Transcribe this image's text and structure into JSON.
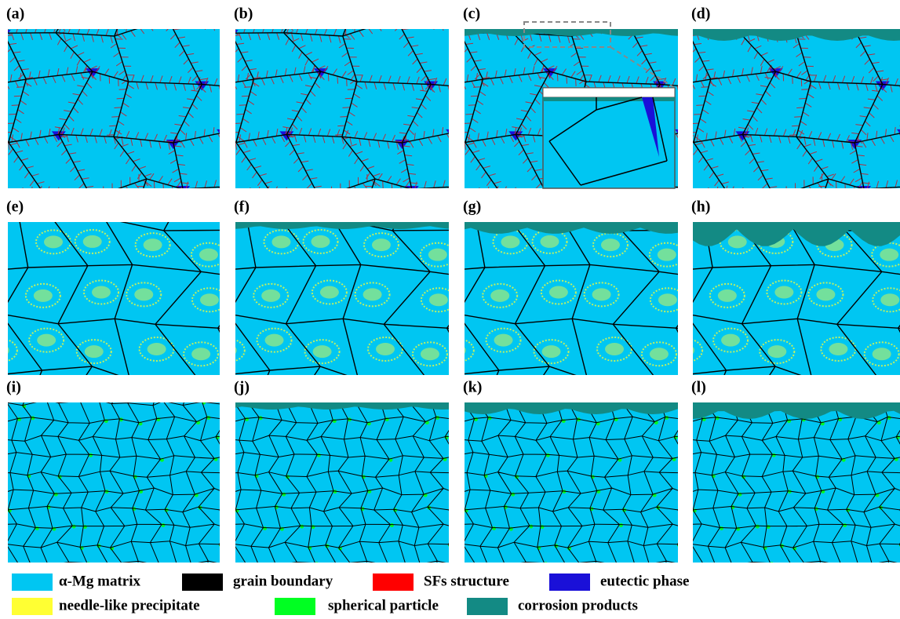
{
  "panels": [
    {
      "label": "(a)"
    },
    {
      "label": "(b)"
    },
    {
      "label": "(c)"
    },
    {
      "label": "(d)"
    },
    {
      "label": "(e)"
    },
    {
      "label": "(f)"
    },
    {
      "label": "(g)"
    },
    {
      "label": "(h)"
    },
    {
      "label": "(i)"
    },
    {
      "label": "(j)"
    },
    {
      "label": "(k)"
    },
    {
      "label": "(l)"
    }
  ],
  "legend": [
    {
      "label": "α-Mg matrix",
      "color": "#00c6f2"
    },
    {
      "label": "grain boundary",
      "color": "#000000"
    },
    {
      "label": "SFs structure",
      "color": "#ff0000"
    },
    {
      "label": "eutectic phase",
      "color": "#1a10d8"
    },
    {
      "label": "needle-like precipitate",
      "color": "#ffff33"
    },
    {
      "label": "spherical particle",
      "color": "#00ff22"
    },
    {
      "label": "corrosion products",
      "color": "#138a84"
    }
  ]
}
